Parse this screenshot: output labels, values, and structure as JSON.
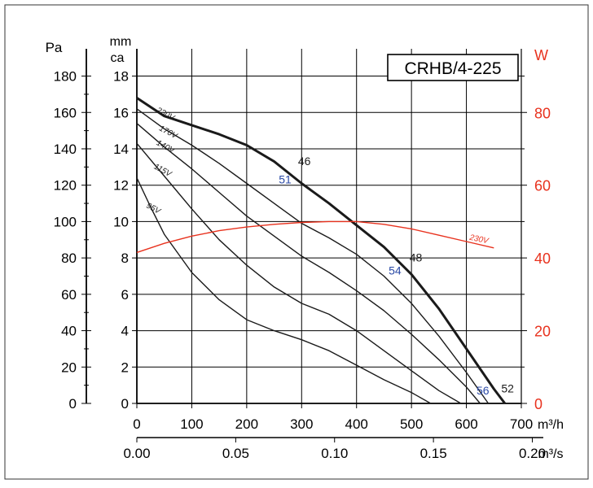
{
  "chart_data": {
    "type": "line",
    "title_box": "CRHB/4-225",
    "colors": {
      "frame": "#000000",
      "grid": "#000000",
      "curve": "#1a1a1a",
      "power": "#e8321e",
      "eff_label": "#2b4aa6",
      "text": "#000000"
    },
    "x_axis": {
      "unit": "m³/h",
      "min": 0,
      "max": 700,
      "ticks": [
        "0",
        "100",
        "200",
        "300",
        "400",
        "500",
        "600",
        "700"
      ]
    },
    "x_axis_secondary": {
      "unit": "m³/s",
      "ticks": [
        {
          "m3h": 0,
          "label": "0.00"
        },
        {
          "m3h": 180,
          "label": "0.05"
        },
        {
          "m3h": 360,
          "label": "0.10"
        },
        {
          "m3h": 540,
          "label": "0.15"
        },
        {
          "m3h": 720,
          "label": "0.20"
        }
      ]
    },
    "y_axis_pa": {
      "unit": "Pa",
      "ticks": [
        "0",
        "20",
        "40",
        "60",
        "80",
        "100",
        "120",
        "140",
        "160",
        "180"
      ]
    },
    "y_axis_mmca": {
      "unit_line1": "mm",
      "unit_line2": "ca",
      "min": 0,
      "max": 19.5,
      "ticks": [
        "0",
        "2",
        "4",
        "6",
        "8",
        "10",
        "12",
        "14",
        "16",
        "18"
      ]
    },
    "y_axis_w": {
      "unit": "W",
      "ticks": [
        "0",
        "20",
        "40",
        "60",
        "80"
      ]
    },
    "grid": true,
    "series": [
      {
        "name": "230V",
        "bold": true,
        "points": [
          [
            0,
            16.8
          ],
          [
            50,
            15.8
          ],
          [
            100,
            15.3
          ],
          [
            150,
            14.8
          ],
          [
            200,
            14.2
          ],
          [
            250,
            13.3
          ],
          [
            300,
            12.1
          ],
          [
            350,
            11.0
          ],
          [
            400,
            9.8
          ],
          [
            450,
            8.6
          ],
          [
            500,
            7.1
          ],
          [
            550,
            5.2
          ],
          [
            600,
            3.0
          ],
          [
            650,
            0.8
          ],
          [
            670,
            0
          ]
        ],
        "label_at": [
          50,
          15.8
        ]
      },
      {
        "name": "170V",
        "bold": false,
        "points": [
          [
            0,
            16.2
          ],
          [
            50,
            15.1
          ],
          [
            100,
            14.2
          ],
          [
            150,
            13.2
          ],
          [
            200,
            12.1
          ],
          [
            250,
            11.0
          ],
          [
            300,
            9.9
          ],
          [
            350,
            9.1
          ],
          [
            400,
            8.2
          ],
          [
            450,
            7.0
          ],
          [
            500,
            5.5
          ],
          [
            550,
            3.7
          ],
          [
            600,
            1.7
          ],
          [
            640,
            0
          ]
        ],
        "label_at": [
          55,
          14.8
        ]
      },
      {
        "name": "140V",
        "bold": false,
        "points": [
          [
            0,
            15.4
          ],
          [
            50,
            14.1
          ],
          [
            100,
            12.9
          ],
          [
            150,
            11.6
          ],
          [
            200,
            10.3
          ],
          [
            250,
            9.2
          ],
          [
            300,
            8.1
          ],
          [
            350,
            7.2
          ],
          [
            400,
            6.2
          ],
          [
            450,
            5.1
          ],
          [
            500,
            3.8
          ],
          [
            550,
            2.4
          ],
          [
            600,
            0.9
          ],
          [
            625,
            0
          ]
        ],
        "label_at": [
          50,
          14.0
        ]
      },
      {
        "name": "115V",
        "bold": false,
        "points": [
          [
            0,
            14.3
          ],
          [
            50,
            12.5
          ],
          [
            100,
            10.7
          ],
          [
            150,
            9.0
          ],
          [
            200,
            7.6
          ],
          [
            250,
            6.4
          ],
          [
            300,
            5.5
          ],
          [
            350,
            4.9
          ],
          [
            400,
            4.0
          ],
          [
            450,
            2.9
          ],
          [
            500,
            1.8
          ],
          [
            550,
            0.7
          ],
          [
            590,
            0
          ]
        ],
        "label_at": [
          45,
          12.7
        ]
      },
      {
        "name": "95V",
        "bold": false,
        "points": [
          [
            0,
            12.4
          ],
          [
            25,
            10.8
          ],
          [
            50,
            9.3
          ],
          [
            100,
            7.2
          ],
          [
            150,
            5.7
          ],
          [
            200,
            4.6
          ],
          [
            250,
            4.0
          ],
          [
            300,
            3.5
          ],
          [
            350,
            2.9
          ],
          [
            400,
            2.1
          ],
          [
            450,
            1.3
          ],
          [
            500,
            0.6
          ],
          [
            535,
            0
          ]
        ],
        "label_at": [
          28,
          10.6
        ]
      }
    ],
    "power_curve": {
      "name": "230V",
      "points": [
        [
          0,
          8.3
        ],
        [
          50,
          8.8
        ],
        [
          100,
          9.2
        ],
        [
          150,
          9.5
        ],
        [
          200,
          9.7
        ],
        [
          250,
          9.85
        ],
        [
          300,
          9.95
        ],
        [
          350,
          10.0
        ],
        [
          400,
          10.0
        ],
        [
          450,
          9.85
        ],
        [
          500,
          9.6
        ],
        [
          550,
          9.25
        ],
        [
          600,
          8.9
        ],
        [
          650,
          8.55
        ]
      ],
      "label_at": [
        622,
        8.9
      ]
    },
    "efficiency_labels": [
      {
        "text": "46",
        "x": 305,
        "y": 13.1,
        "color": "curve"
      },
      {
        "text": "51",
        "x": 270,
        "y": 12.1,
        "color": "eff_label"
      },
      {
        "text": "48",
        "x": 508,
        "y": 7.8,
        "color": "curve"
      },
      {
        "text": "54",
        "x": 470,
        "y": 7.1,
        "color": "eff_label"
      },
      {
        "text": "56",
        "x": 630,
        "y": 0.5,
        "color": "eff_label"
      },
      {
        "text": "52",
        "x": 675,
        "y": 0.6,
        "color": "curve"
      }
    ]
  }
}
